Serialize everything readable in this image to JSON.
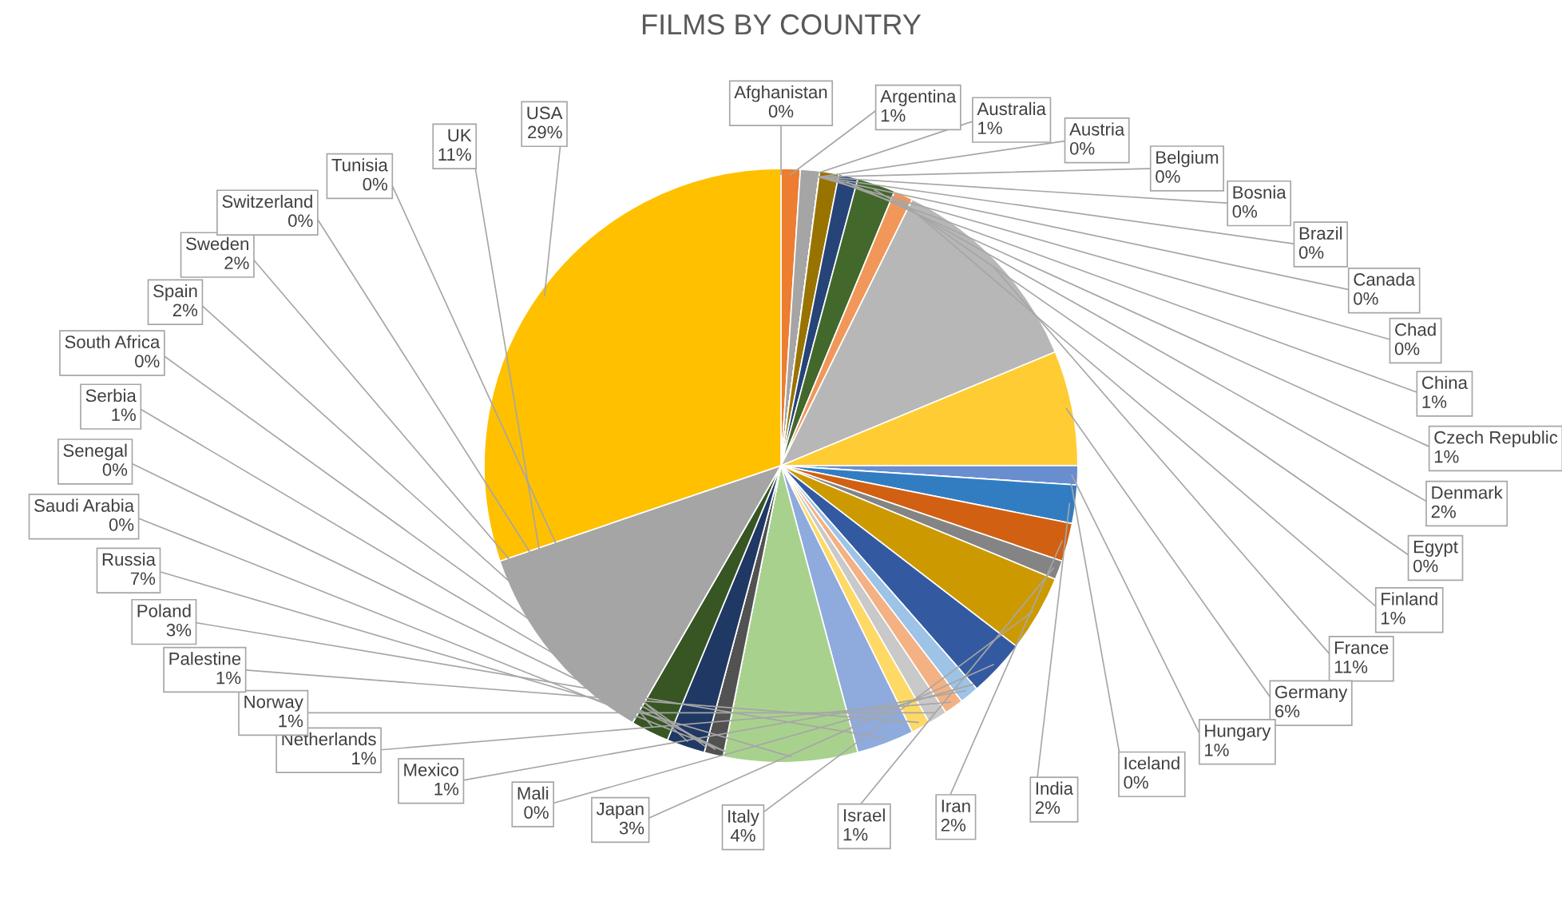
{
  "chart_data": {
    "type": "pie",
    "title": "FILMS BY COUNTRY",
    "categories": [
      "Afghanistan",
      "Argentina",
      "Australia",
      "Austria",
      "Belgium",
      "Bosnia",
      "Brazil",
      "Canada",
      "Chad",
      "China",
      "Czech Republic",
      "Denmark",
      "Egypt",
      "Finland",
      "France",
      "Germany",
      "Hungary",
      "Iceland",
      "India",
      "Iran",
      "Israel",
      "Italy",
      "Japan",
      "Mali",
      "Mexico",
      "Netherlands",
      "Norway",
      "Palestine",
      "Poland",
      "Russia",
      "Saudi Arabia",
      "Senegal",
      "Serbia",
      "South Africa",
      "Spain",
      "Sweden",
      "Switzerland",
      "Tunisia",
      "UK",
      "USA"
    ],
    "values": [
      0,
      1,
      1,
      0,
      0,
      0,
      0,
      0,
      0,
      1,
      1,
      2,
      0,
      1,
      11,
      6,
      1,
      0,
      2,
      2,
      1,
      4,
      3,
      0,
      1,
      1,
      1,
      1,
      3,
      7,
      0,
      0,
      1,
      0,
      2,
      2,
      0,
      0,
      11,
      29
    ],
    "value_labels": [
      "0%",
      "1%",
      "1%",
      "0%",
      "0%",
      "0%",
      "0%",
      "0%",
      "0%",
      "1%",
      "1%",
      "2%",
      "0%",
      "1%",
      "11%",
      "6%",
      "1%",
      "0%",
      "2%",
      "2%",
      "1%",
      "4%",
      "3%",
      "0%",
      "1%",
      "1%",
      "1%",
      "1%",
      "3%",
      "7%",
      "0%",
      "0%",
      "1%",
      "0%",
      "2%",
      "2%",
      "0%",
      "0%",
      "11%",
      "29%"
    ],
    "colors": [
      "#5b9bd5",
      "#ed7d31",
      "#a5a5a5",
      "#ffc000",
      "#4472c4",
      "#70ad47",
      "#255e91",
      "#9e480e",
      "#636363",
      "#997300",
      "#264478",
      "#43682b",
      "#7cafdd",
      "#f1975a",
      "#b7b7b7",
      "#ffcd33",
      "#698ed0",
      "#8cc168",
      "#327dc2",
      "#d26012",
      "#848484",
      "#cc9a00",
      "#335aa1",
      "#5a8a39",
      "#9dc3e6",
      "#f4b183",
      "#c9c9c9",
      "#ffd966",
      "#8faadc",
      "#a9d18e",
      "#1f4e79",
      "#843c0c",
      "#525252",
      "#7f6000",
      "#203864",
      "#375623",
      "#5b9bd5",
      "#ed7d31",
      "#a5a5a5",
      "#ffc000"
    ],
    "legend": false
  }
}
